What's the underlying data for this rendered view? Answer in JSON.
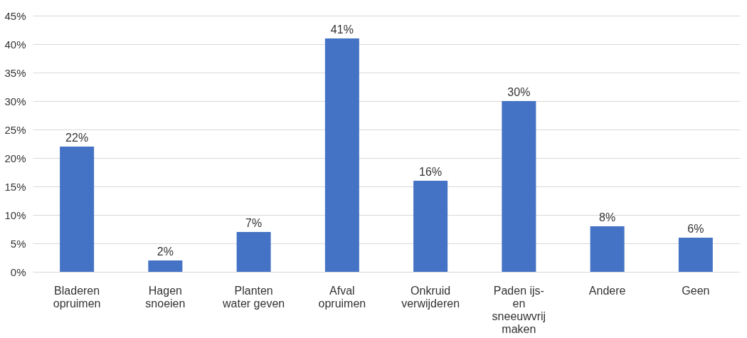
{
  "chart_data": {
    "type": "bar",
    "categories": [
      "Bladeren opruimen",
      "Hagen snoeien",
      "Planten water geven",
      "Afval opruimen",
      "Onkruid verwijderen",
      "Paden ijs- en sneeuwvrij maken",
      "Andere",
      "Geen"
    ],
    "values": [
      22,
      2,
      7,
      41,
      16,
      30,
      8,
      6
    ],
    "value_labels": [
      "22%",
      "2%",
      "7%",
      "41%",
      "16%",
      "30%",
      "8%",
      "6%"
    ],
    "color": "#4472c4",
    "ylim": [
      0,
      45
    ],
    "yticks": [
      {
        "value": 0,
        "label": "0%"
      },
      {
        "value": 5,
        "label": "5%"
      },
      {
        "value": 10,
        "label": "10%"
      },
      {
        "value": 15,
        "label": "15%"
      },
      {
        "value": 20,
        "label": "20%"
      },
      {
        "value": 25,
        "label": "25%"
      },
      {
        "value": 30,
        "label": "30%"
      },
      {
        "value": 35,
        "label": "35%"
      },
      {
        "value": 40,
        "label": "40%"
      },
      {
        "value": 45,
        "label": "45%"
      }
    ],
    "grid": "y"
  }
}
